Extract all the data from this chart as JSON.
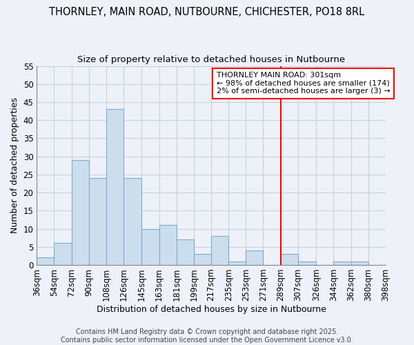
{
  "title": "THORNLEY, MAIN ROAD, NUTBOURNE, CHICHESTER, PO18 8RL",
  "subtitle": "Size of property relative to detached houses in Nutbourne",
  "xlabel": "Distribution of detached houses by size in Nutbourne",
  "ylabel": "Number of detached properties",
  "bin_edges": [
    36,
    54,
    72,
    90,
    108,
    126,
    145,
    163,
    181,
    199,
    217,
    235,
    253,
    271,
    289,
    307,
    326,
    344,
    362,
    380,
    398
  ],
  "bin_labels": [
    "36sqm",
    "54sqm",
    "72sqm",
    "90sqm",
    "108sqm",
    "126sqm",
    "145sqm",
    "163sqm",
    "181sqm",
    "199sqm",
    "217sqm",
    "235sqm",
    "253sqm",
    "271sqm",
    "289sqm",
    "307sqm",
    "326sqm",
    "344sqm",
    "362sqm",
    "380sqm",
    "398sqm"
  ],
  "counts": [
    2,
    6,
    29,
    24,
    43,
    24,
    10,
    11,
    7,
    3,
    8,
    1,
    4,
    0,
    3,
    1,
    0,
    1,
    1,
    0
  ],
  "bar_color": "#ccdded",
  "bar_edge_color": "#7aadcc",
  "grid_color": "#c8cfe0",
  "background_color": "#eef1f8",
  "red_line_x": 289,
  "annotation_title": "THORNLEY MAIN ROAD: 301sqm",
  "annotation_line1": "← 98% of detached houses are smaller (174)",
  "annotation_line2": "2% of semi-detached houses are larger (3) →",
  "ylim": [
    0,
    55
  ],
  "yticks": [
    0,
    5,
    10,
    15,
    20,
    25,
    30,
    35,
    40,
    45,
    50,
    55
  ],
  "title_fontsize": 10.5,
  "subtitle_fontsize": 9.5,
  "axis_label_fontsize": 9,
  "tick_fontsize": 8.5,
  "annot_fontsize": 8
}
